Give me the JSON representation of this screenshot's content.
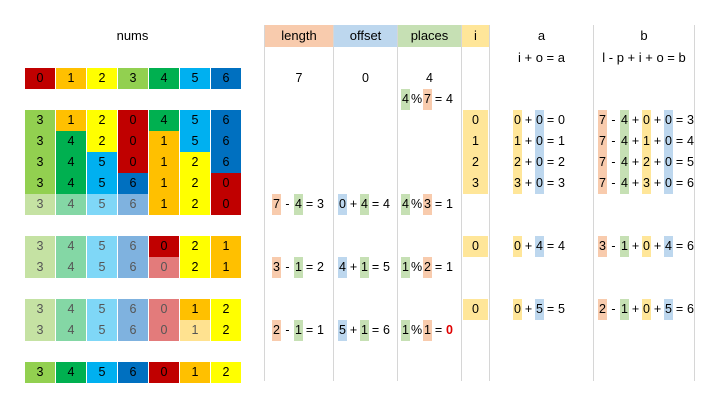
{
  "headers": {
    "nums": "nums",
    "length": "length",
    "offset": "offset",
    "places": "places",
    "i": "i",
    "a": "a",
    "b": "b",
    "a_formula": "i + o = a",
    "b_formula": "l - p + i + o = b"
  },
  "palette": {
    "0": "#c00000",
    "1": "#ffc000",
    "2": "#ffff00",
    "3": "#92d050",
    "4": "#00b050",
    "5": "#00b0f0",
    "6": "#0070c0",
    "0_faded": "#e37b7b",
    "1_faded": "#ffe290",
    "2_faded": "#ffff99",
    "3_faded": "#c5e2a3",
    "4_faded": "#84d7a5",
    "5_faded": "#7fd7f7",
    "6_faded": "#7fb2df",
    "length_hl": "#f8cbad",
    "offset_hl": "#bdd7ee",
    "places_hl": "#c6e0b4",
    "i_hl": "#ffe699",
    "zero_highlight": "#e00000"
  },
  "grid_rows": [
    [
      {
        "v": "0",
        "c": "0"
      },
      {
        "v": "1",
        "c": "1"
      },
      {
        "v": "2",
        "c": "2"
      },
      {
        "v": "3",
        "c": "3"
      },
      {
        "v": "4",
        "c": "4"
      },
      {
        "v": "5",
        "c": "5"
      },
      {
        "v": "6",
        "c": "6"
      }
    ],
    [
      {
        "v": "3",
        "c": "3"
      },
      {
        "v": "1",
        "c": "1"
      },
      {
        "v": "2",
        "c": "2"
      },
      {
        "v": "0",
        "c": "0"
      },
      {
        "v": "4",
        "c": "4"
      },
      {
        "v": "5",
        "c": "5"
      },
      {
        "v": "6",
        "c": "6"
      }
    ],
    [
      {
        "v": "3",
        "c": "3"
      },
      {
        "v": "4",
        "c": "4"
      },
      {
        "v": "2",
        "c": "2"
      },
      {
        "v": "0",
        "c": "0"
      },
      {
        "v": "1",
        "c": "1"
      },
      {
        "v": "5",
        "c": "5"
      },
      {
        "v": "6",
        "c": "6"
      }
    ],
    [
      {
        "v": "3",
        "c": "3"
      },
      {
        "v": "4",
        "c": "4"
      },
      {
        "v": "5",
        "c": "5"
      },
      {
        "v": "0",
        "c": "0"
      },
      {
        "v": "1",
        "c": "1"
      },
      {
        "v": "2",
        "c": "2"
      },
      {
        "v": "6",
        "c": "6"
      }
    ],
    [
      {
        "v": "3",
        "c": "3"
      },
      {
        "v": "4",
        "c": "4"
      },
      {
        "v": "5",
        "c": "5"
      },
      {
        "v": "6",
        "c": "6"
      },
      {
        "v": "1",
        "c": "1"
      },
      {
        "v": "2",
        "c": "2"
      },
      {
        "v": "0",
        "c": "0"
      }
    ],
    [
      {
        "v": "3",
        "c": "3",
        "f": 1
      },
      {
        "v": "4",
        "c": "4",
        "f": 1
      },
      {
        "v": "5",
        "c": "5",
        "f": 1
      },
      {
        "v": "6",
        "c": "6",
        "f": 1
      },
      {
        "v": "1",
        "c": "1"
      },
      {
        "v": "2",
        "c": "2"
      },
      {
        "v": "0",
        "c": "0"
      }
    ],
    [
      {
        "v": "3",
        "c": "3",
        "f": 1
      },
      {
        "v": "4",
        "c": "4",
        "f": 1
      },
      {
        "v": "5",
        "c": "5",
        "f": 1
      },
      {
        "v": "6",
        "c": "6",
        "f": 1
      },
      {
        "v": "0",
        "c": "0"
      },
      {
        "v": "2",
        "c": "2"
      },
      {
        "v": "1",
        "c": "1"
      }
    ],
    [
      {
        "v": "3",
        "c": "3",
        "f": 1
      },
      {
        "v": "4",
        "c": "4",
        "f": 1
      },
      {
        "v": "5",
        "c": "5",
        "f": 1
      },
      {
        "v": "6",
        "c": "6",
        "f": 1
      },
      {
        "v": "0",
        "c": "0",
        "f": 1
      },
      {
        "v": "2",
        "c": "2"
      },
      {
        "v": "1",
        "c": "1"
      }
    ],
    [
      {
        "v": "3",
        "c": "3",
        "f": 1
      },
      {
        "v": "4",
        "c": "4",
        "f": 1
      },
      {
        "v": "5",
        "c": "5",
        "f": 1
      },
      {
        "v": "6",
        "c": "6",
        "f": 1
      },
      {
        "v": "0",
        "c": "0",
        "f": 1
      },
      {
        "v": "1",
        "c": "1"
      },
      {
        "v": "2",
        "c": "2"
      }
    ],
    [
      {
        "v": "3",
        "c": "3",
        "f": 1
      },
      {
        "v": "4",
        "c": "4",
        "f": 1
      },
      {
        "v": "5",
        "c": "5",
        "f": 1
      },
      {
        "v": "6",
        "c": "6",
        "f": 1
      },
      {
        "v": "0",
        "c": "0",
        "f": 1
      },
      {
        "v": "1",
        "c": "1",
        "f": 1
      },
      {
        "v": "2",
        "c": "2"
      }
    ],
    [
      {
        "v": "3",
        "c": "3"
      },
      {
        "v": "4",
        "c": "4"
      },
      {
        "v": "5",
        "c": "5"
      },
      {
        "v": "6",
        "c": "6"
      },
      {
        "v": "0",
        "c": "0"
      },
      {
        "v": "1",
        "c": "1"
      },
      {
        "v": "2",
        "c": "2"
      }
    ]
  ],
  "initial": {
    "length": "7",
    "offset": "0",
    "places": "4"
  },
  "places_first": [
    {
      "t": "4",
      "hl": "places_hl"
    },
    {
      "t": "%"
    },
    {
      "t": "7",
      "hl": "length_hl"
    },
    {
      "t": "="
    },
    {
      "t": "4"
    }
  ],
  "i_values": [
    "0",
    "1",
    "2",
    "3",
    "0",
    "0"
  ],
  "a_rows": [
    [
      {
        "t": "0",
        "hl": "i_hl"
      },
      {
        "t": "+"
      },
      {
        "t": "0",
        "hl": "offset_hl"
      },
      {
        "t": "="
      },
      {
        "t": "0"
      }
    ],
    [
      {
        "t": "1",
        "hl": "i_hl"
      },
      {
        "t": "+"
      },
      {
        "t": "0",
        "hl": "offset_hl"
      },
      {
        "t": "="
      },
      {
        "t": "1"
      }
    ],
    [
      {
        "t": "2",
        "hl": "i_hl"
      },
      {
        "t": "+"
      },
      {
        "t": "0",
        "hl": "offset_hl"
      },
      {
        "t": "="
      },
      {
        "t": "2"
      }
    ],
    [
      {
        "t": "3",
        "hl": "i_hl"
      },
      {
        "t": "+"
      },
      {
        "t": "0",
        "hl": "offset_hl"
      },
      {
        "t": "="
      },
      {
        "t": "3"
      }
    ],
    [
      {
        "t": "0",
        "hl": "i_hl"
      },
      {
        "t": "+"
      },
      {
        "t": "4",
        "hl": "offset_hl"
      },
      {
        "t": "="
      },
      {
        "t": "4"
      }
    ],
    [
      {
        "t": "0",
        "hl": "i_hl"
      },
      {
        "t": "+"
      },
      {
        "t": "5",
        "hl": "offset_hl"
      },
      {
        "t": "="
      },
      {
        "t": "5"
      }
    ]
  ],
  "b_rows": [
    [
      {
        "t": "7",
        "hl": "length_hl"
      },
      {
        "t": "-"
      },
      {
        "t": "4",
        "hl": "places_hl"
      },
      {
        "t": "+"
      },
      {
        "t": "0",
        "hl": "i_hl"
      },
      {
        "t": "+"
      },
      {
        "t": "0",
        "hl": "offset_hl"
      },
      {
        "t": "="
      },
      {
        "t": "3"
      }
    ],
    [
      {
        "t": "7",
        "hl": "length_hl"
      },
      {
        "t": "-"
      },
      {
        "t": "4",
        "hl": "places_hl"
      },
      {
        "t": "+"
      },
      {
        "t": "1",
        "hl": "i_hl"
      },
      {
        "t": "+"
      },
      {
        "t": "0",
        "hl": "offset_hl"
      },
      {
        "t": "="
      },
      {
        "t": "4"
      }
    ],
    [
      {
        "t": "7",
        "hl": "length_hl"
      },
      {
        "t": "-"
      },
      {
        "t": "4",
        "hl": "places_hl"
      },
      {
        "t": "+"
      },
      {
        "t": "2",
        "hl": "i_hl"
      },
      {
        "t": "+"
      },
      {
        "t": "0",
        "hl": "offset_hl"
      },
      {
        "t": "="
      },
      {
        "t": "5"
      }
    ],
    [
      {
        "t": "7",
        "hl": "length_hl"
      },
      {
        "t": "-"
      },
      {
        "t": "4",
        "hl": "places_hl"
      },
      {
        "t": "+"
      },
      {
        "t": "3",
        "hl": "i_hl"
      },
      {
        "t": "+"
      },
      {
        "t": "0",
        "hl": "offset_hl"
      },
      {
        "t": "="
      },
      {
        "t": "6"
      }
    ],
    [
      {
        "t": "3",
        "hl": "length_hl"
      },
      {
        "t": "-"
      },
      {
        "t": "1",
        "hl": "places_hl"
      },
      {
        "t": "+"
      },
      {
        "t": "0",
        "hl": "i_hl"
      },
      {
        "t": "+"
      },
      {
        "t": "4",
        "hl": "offset_hl"
      },
      {
        "t": "="
      },
      {
        "t": "6"
      }
    ],
    [
      {
        "t": "2",
        "hl": "length_hl"
      },
      {
        "t": "-"
      },
      {
        "t": "1",
        "hl": "places_hl"
      },
      {
        "t": "+"
      },
      {
        "t": "0",
        "hl": "i_hl"
      },
      {
        "t": "+"
      },
      {
        "t": "5",
        "hl": "offset_hl"
      },
      {
        "t": "="
      },
      {
        "t": "6"
      }
    ]
  ],
  "length_eqs": [
    [
      {
        "t": "7",
        "hl": "length_hl"
      },
      {
        "t": "-"
      },
      {
        "t": "4",
        "hl": "places_hl"
      },
      {
        "t": "="
      },
      {
        "t": "3"
      }
    ],
    [
      {
        "t": "3",
        "hl": "length_hl"
      },
      {
        "t": "-"
      },
      {
        "t": "1",
        "hl": "places_hl"
      },
      {
        "t": "="
      },
      {
        "t": "2"
      }
    ],
    [
      {
        "t": "2",
        "hl": "length_hl"
      },
      {
        "t": "-"
      },
      {
        "t": "1",
        "hl": "places_hl"
      },
      {
        "t": "="
      },
      {
        "t": "1"
      }
    ]
  ],
  "offset_eqs": [
    [
      {
        "t": "0",
        "hl": "offset_hl"
      },
      {
        "t": "+"
      },
      {
        "t": "4",
        "hl": "places_hl"
      },
      {
        "t": "="
      },
      {
        "t": "4"
      }
    ],
    [
      {
        "t": "4",
        "hl": "offset_hl"
      },
      {
        "t": "+"
      },
      {
        "t": "1",
        "hl": "places_hl"
      },
      {
        "t": "="
      },
      {
        "t": "5"
      }
    ],
    [
      {
        "t": "5",
        "hl": "offset_hl"
      },
      {
        "t": "+"
      },
      {
        "t": "1",
        "hl": "places_hl"
      },
      {
        "t": "="
      },
      {
        "t": "6"
      }
    ]
  ],
  "places_eqs": [
    [
      {
        "t": "4",
        "hl": "places_hl"
      },
      {
        "t": "%"
      },
      {
        "t": "3",
        "hl": "length_hl"
      },
      {
        "t": "="
      },
      {
        "t": "1"
      }
    ],
    [
      {
        "t": "1",
        "hl": "places_hl"
      },
      {
        "t": "%"
      },
      {
        "t": "2",
        "hl": "length_hl"
      },
      {
        "t": "="
      },
      {
        "t": "1"
      }
    ],
    [
      {
        "t": "1",
        "hl": "places_hl"
      },
      {
        "t": "%"
      },
      {
        "t": "1",
        "hl": "length_hl"
      },
      {
        "t": "="
      },
      {
        "t": "0",
        "red": 1
      }
    ]
  ]
}
